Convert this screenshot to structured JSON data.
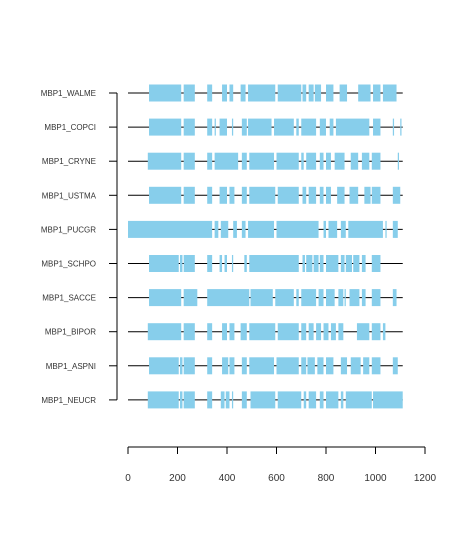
{
  "chart_data": {
    "type": "alignment",
    "title": "",
    "xlabel": "",
    "ylabel": "",
    "xlim": [
      0,
      1200
    ],
    "x_ticks": [
      0,
      200,
      400,
      600,
      800,
      1000,
      1200
    ],
    "x_tick_labels": [
      "0",
      "200",
      "400",
      "600",
      "800",
      "1000",
      "1200"
    ],
    "grid": false,
    "legend": "none",
    "colors": {
      "block": "#87ceeb",
      "line": "#000000",
      "text": "#333333"
    },
    "sequences": [
      {
        "label": "MBP1_WALME",
        "extent": [
          0,
          1110
        ],
        "blocks": [
          [
            85,
            215
          ],
          [
            225,
            270
          ],
          [
            320,
            340
          ],
          [
            380,
            400
          ],
          [
            410,
            425
          ],
          [
            455,
            475
          ],
          [
            485,
            595
          ],
          [
            605,
            700
          ],
          [
            705,
            720
          ],
          [
            730,
            750
          ],
          [
            755,
            780
          ],
          [
            800,
            830
          ],
          [
            855,
            885
          ],
          [
            930,
            980
          ],
          [
            990,
            1020
          ],
          [
            1030,
            1085
          ]
        ]
      },
      {
        "label": "MBP1_COPCI",
        "extent": [
          0,
          1110
        ],
        "blocks": [
          [
            85,
            215
          ],
          [
            225,
            270
          ],
          [
            320,
            340
          ],
          [
            350,
            355
          ],
          [
            370,
            400
          ],
          [
            420,
            425
          ],
          [
            460,
            480
          ],
          [
            485,
            580
          ],
          [
            590,
            670
          ],
          [
            680,
            690
          ],
          [
            700,
            760
          ],
          [
            775,
            800
          ],
          [
            815,
            830
          ],
          [
            840,
            975
          ],
          [
            990,
            1020
          ],
          [
            1070,
            1075
          ],
          [
            1100,
            1105
          ]
        ]
      },
      {
        "label": "MBP1_CRYNE",
        "extent": [
          0,
          1110
        ],
        "blocks": [
          [
            80,
            215
          ],
          [
            225,
            270
          ],
          [
            320,
            340
          ],
          [
            350,
            445
          ],
          [
            460,
            480
          ],
          [
            490,
            590
          ],
          [
            600,
            690
          ],
          [
            700,
            710
          ],
          [
            720,
            760
          ],
          [
            775,
            790
          ],
          [
            800,
            820
          ],
          [
            835,
            875
          ],
          [
            900,
            930
          ],
          [
            945,
            975
          ],
          [
            985,
            1020
          ],
          [
            1090,
            1095
          ]
        ]
      },
      {
        "label": "MBP1_USTMA",
        "extent": [
          0,
          1110
        ],
        "blocks": [
          [
            85,
            215
          ],
          [
            225,
            270
          ],
          [
            320,
            340
          ],
          [
            370,
            400
          ],
          [
            410,
            430
          ],
          [
            460,
            480
          ],
          [
            490,
            595
          ],
          [
            605,
            690
          ],
          [
            705,
            720
          ],
          [
            730,
            760
          ],
          [
            775,
            790
          ],
          [
            800,
            820
          ],
          [
            845,
            875
          ],
          [
            895,
            930
          ],
          [
            955,
            980
          ],
          [
            985,
            1020
          ],
          [
            1070,
            1100
          ]
        ]
      },
      {
        "label": "MBP1_PUCGR",
        "extent": [
          0,
          1110
        ],
        "blocks": [
          [
            0,
            340
          ],
          [
            350,
            365
          ],
          [
            375,
            405
          ],
          [
            425,
            440
          ],
          [
            460,
            475
          ],
          [
            485,
            590
          ],
          [
            600,
            770
          ],
          [
            790,
            800
          ],
          [
            810,
            845
          ],
          [
            860,
            880
          ],
          [
            890,
            1030
          ],
          [
            1040,
            1045
          ],
          [
            1070,
            1090
          ]
        ]
      },
      {
        "label": "MBP1_SCHPO",
        "extent": [
          0,
          1110
        ],
        "blocks": [
          [
            85,
            205
          ],
          [
            210,
            220
          ],
          [
            225,
            270
          ],
          [
            320,
            340
          ],
          [
            370,
            380
          ],
          [
            390,
            400
          ],
          [
            420,
            425
          ],
          [
            470,
            480
          ],
          [
            490,
            690
          ],
          [
            705,
            715
          ],
          [
            720,
            745
          ],
          [
            750,
            770
          ],
          [
            775,
            790
          ],
          [
            800,
            850
          ],
          [
            860,
            875
          ],
          [
            880,
            905
          ],
          [
            910,
            935
          ],
          [
            945,
            960
          ],
          [
            985,
            1020
          ]
        ]
      },
      {
        "label": "MBP1_SACCE",
        "extent": [
          0,
          1110
        ],
        "blocks": [
          [
            85,
            215
          ],
          [
            225,
            280
          ],
          [
            320,
            490
          ],
          [
            495,
            585
          ],
          [
            595,
            670
          ],
          [
            680,
            690
          ],
          [
            700,
            760
          ],
          [
            770,
            790
          ],
          [
            800,
            835
          ],
          [
            850,
            870
          ],
          [
            875,
            880
          ],
          [
            895,
            935
          ],
          [
            945,
            960
          ],
          [
            985,
            1020
          ],
          [
            1070,
            1085
          ]
        ]
      },
      {
        "label": "MBP1_BIPOR",
        "extent": [
          0,
          1110
        ],
        "blocks": [
          [
            80,
            215
          ],
          [
            225,
            270
          ],
          [
            320,
            340
          ],
          [
            380,
            400
          ],
          [
            410,
            430
          ],
          [
            455,
            480
          ],
          [
            490,
            595
          ],
          [
            605,
            690
          ],
          [
            700,
            720
          ],
          [
            730,
            750
          ],
          [
            760,
            780
          ],
          [
            790,
            810
          ],
          [
            820,
            840
          ],
          [
            850,
            870
          ],
          [
            925,
            975
          ],
          [
            985,
            1020
          ],
          [
            1030,
            1040
          ]
        ]
      },
      {
        "label": "MBP1_ASPNI",
        "extent": [
          0,
          1110
        ],
        "blocks": [
          [
            85,
            205
          ],
          [
            210,
            220
          ],
          [
            225,
            270
          ],
          [
            320,
            340
          ],
          [
            380,
            405
          ],
          [
            410,
            430
          ],
          [
            460,
            480
          ],
          [
            490,
            590
          ],
          [
            600,
            690
          ],
          [
            700,
            720
          ],
          [
            725,
            755
          ],
          [
            765,
            790
          ],
          [
            800,
            830
          ],
          [
            860,
            885
          ],
          [
            900,
            940
          ],
          [
            950,
            975
          ],
          [
            985,
            1020
          ],
          [
            1070,
            1090
          ]
        ]
      },
      {
        "label": "MBP1_NEUCR",
        "extent": [
          0,
          1110
        ],
        "blocks": [
          [
            80,
            205
          ],
          [
            210,
            220
          ],
          [
            225,
            270
          ],
          [
            320,
            340
          ],
          [
            375,
            390
          ],
          [
            395,
            410
          ],
          [
            420,
            425
          ],
          [
            460,
            480
          ],
          [
            495,
            595
          ],
          [
            605,
            700
          ],
          [
            710,
            720
          ],
          [
            730,
            760
          ],
          [
            775,
            790
          ],
          [
            800,
            850
          ],
          [
            860,
            870
          ],
          [
            880,
            985
          ],
          [
            990,
            1110
          ]
        ]
      }
    ]
  }
}
